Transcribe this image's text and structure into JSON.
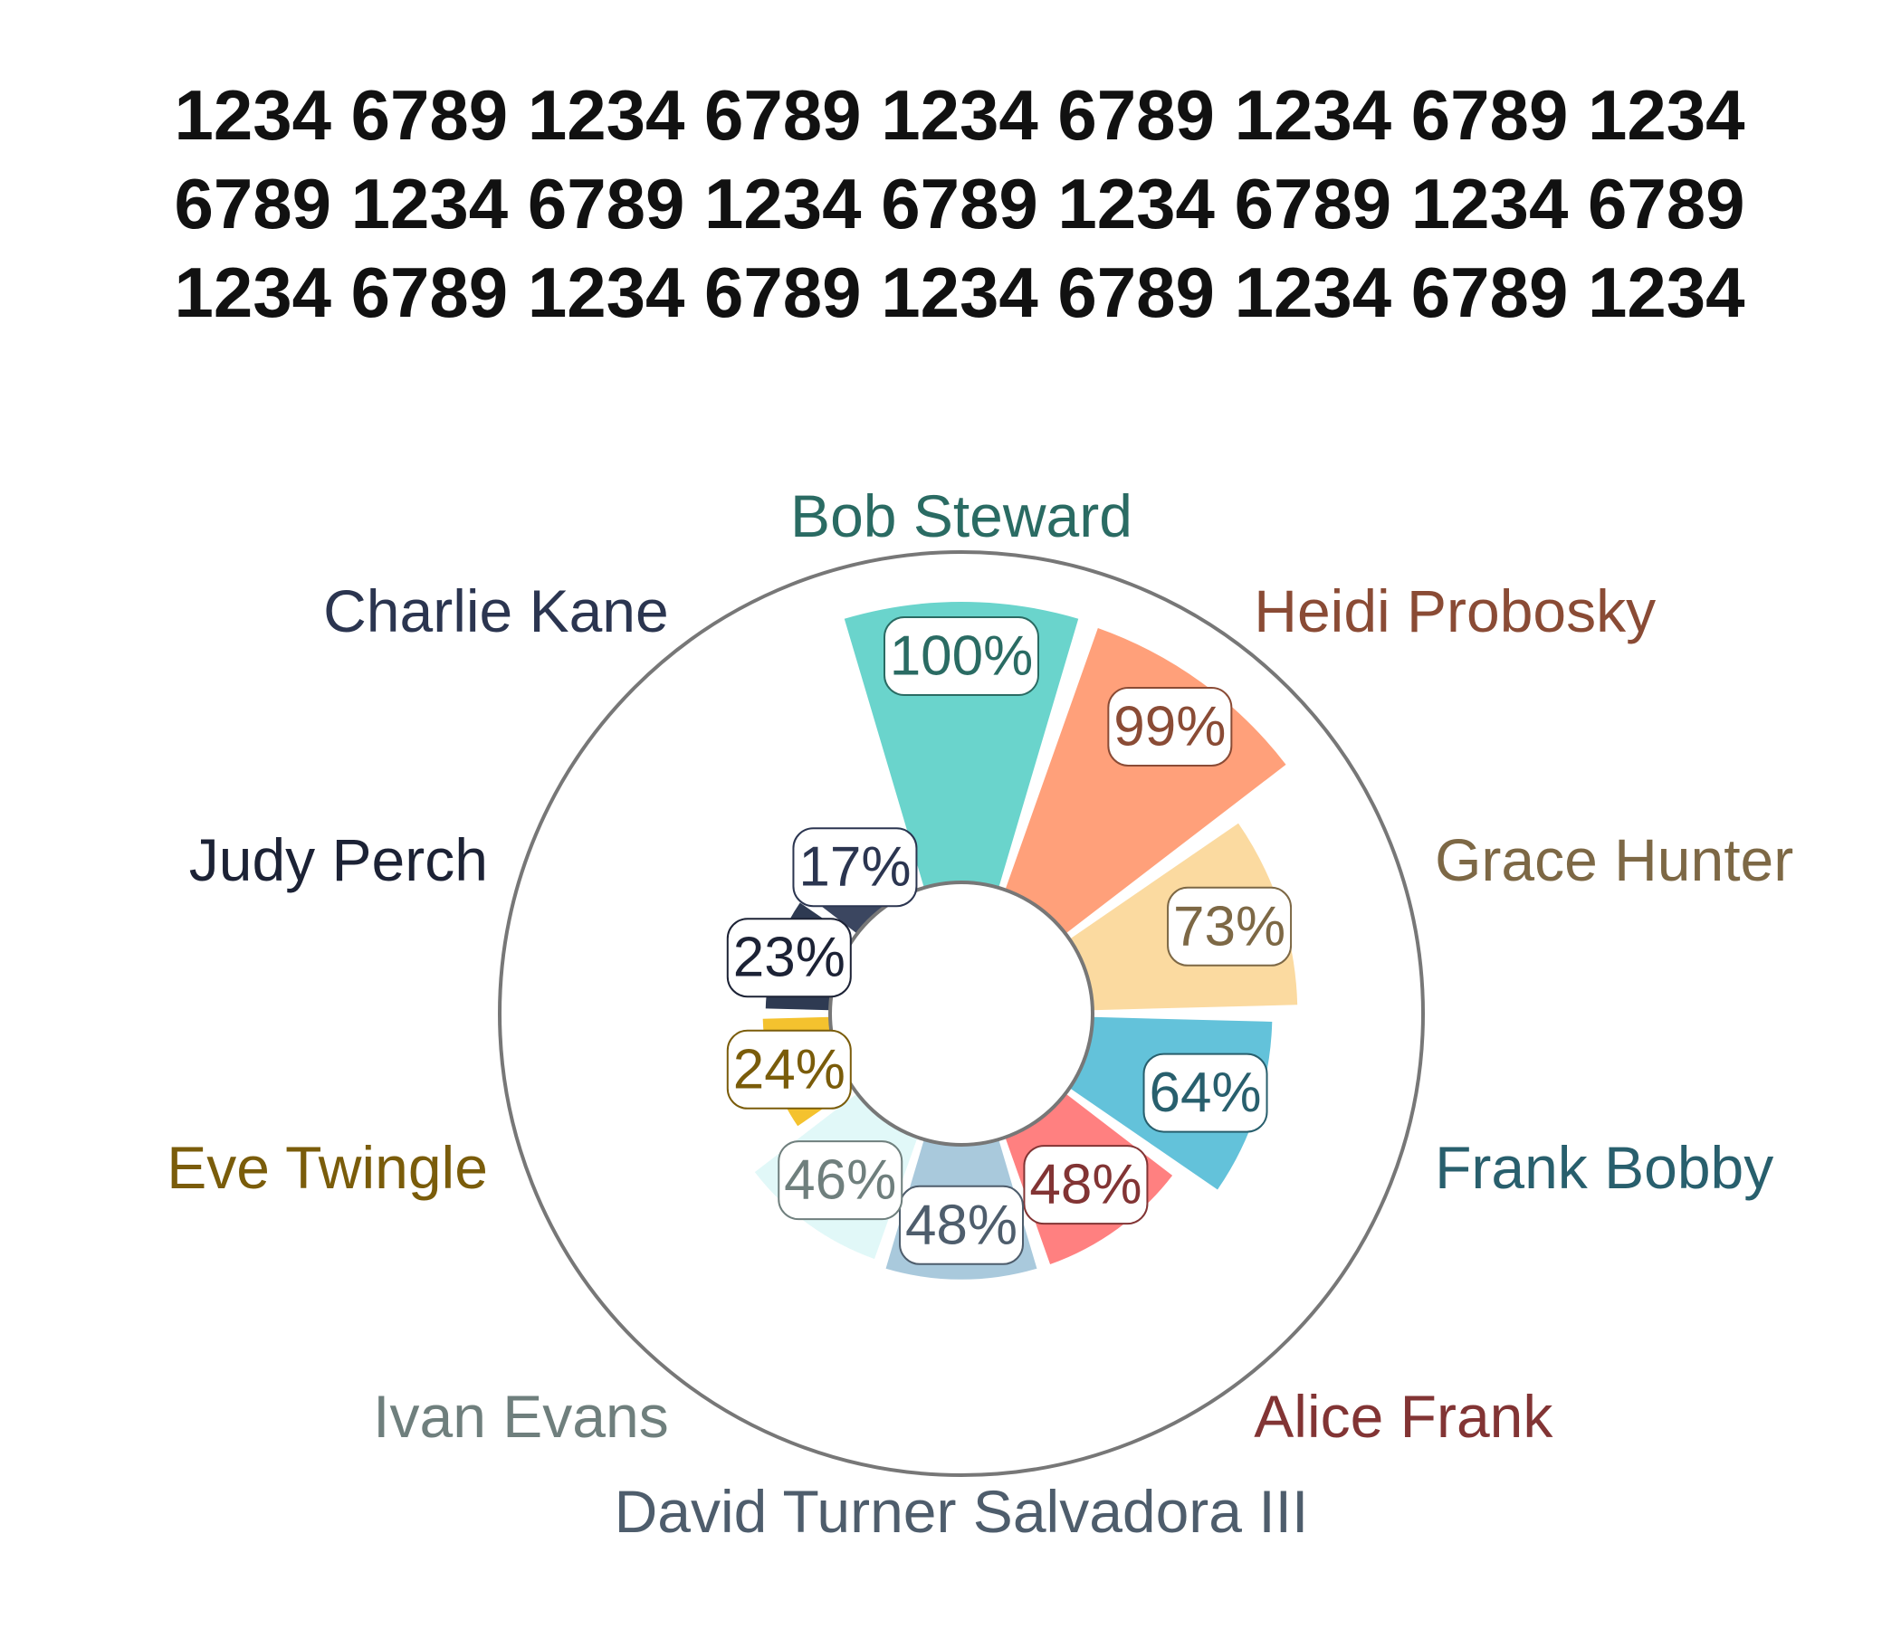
{
  "chart_data": {
    "type": "polar-bar",
    "title": "1234 6789 1234 6789 1234 6789 1234 6789 1234 6789 1234 6789 1234 6789 1234 6789 1234 6789 1234 6789 1234 6789 1234 6789 1234 6789 1234",
    "unit": "%",
    "categories": [
      "Bob Steward",
      "Heidi Probosky",
      "Grace Hunter",
      "Frank Bobby",
      "Alice Frank",
      "David Turner Salvadora III",
      "Ivan Evans",
      "Eve Twingle",
      "Judy Perch",
      "Charlie Kane"
    ],
    "values": [
      100,
      99,
      73,
      64,
      48,
      48,
      46,
      24,
      23,
      17
    ],
    "value_labels": [
      "100%",
      "99%",
      "73%",
      "64%",
      "48%",
      "48%",
      "46%",
      "24%",
      "23%",
      "17%"
    ],
    "colors": {
      "fill": [
        "#6ad4cc",
        "#ffa07a",
        "#fbdaa0",
        "#63c2da",
        "#ff8080",
        "#a9c9dc",
        "#e1f8f8",
        "#f4c22e",
        "#2e3a52",
        "#3b4660"
      ],
      "text": [
        "#2a6b63",
        "#8a4b35",
        "#7d6845",
        "#285f6d",
        "#823434",
        "#4e5d6c",
        "#6f7f7d",
        "#7a5c0a",
        "#1c2235",
        "#2b3550"
      ]
    },
    "range": [
      0,
      100
    ],
    "grid": false,
    "legend": "none"
  }
}
